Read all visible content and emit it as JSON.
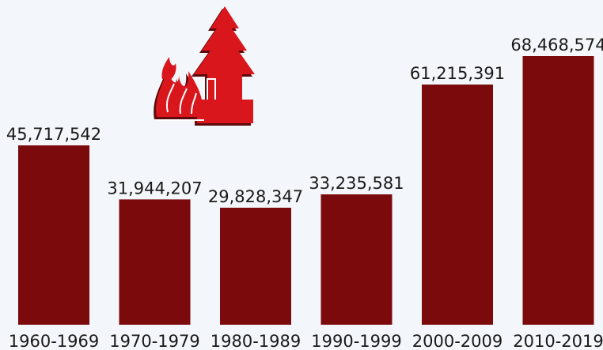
{
  "chart_data": {
    "type": "bar",
    "categories": [
      "1960-1969",
      "1970-1979",
      "1980-1989",
      "1990-1999",
      "2000-2009",
      "2010-2019"
    ],
    "values": [
      45717542,
      31944207,
      29828347,
      33235581,
      61215391,
      68468574
    ],
    "data_labels": [
      "45,717,542",
      "31,944,207",
      "29,828,347",
      "33,235,581",
      "61,215,391",
      "68,468,574"
    ],
    "ylim": [
      0,
      68468574
    ],
    "grid": false,
    "colors": {
      "bar": "#7a0a0b",
      "background": "#f3f6fa",
      "icon": "#d9161c"
    },
    "icon": "wildfire-tree-icon"
  }
}
